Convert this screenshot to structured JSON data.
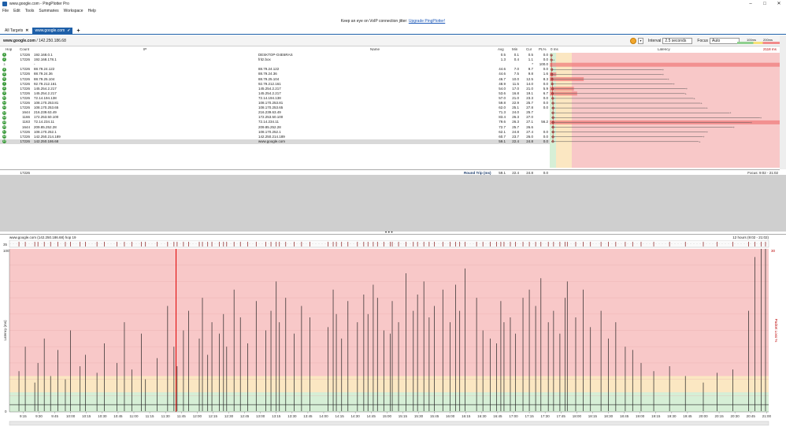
{
  "window": {
    "title": "www.google.com - PingPlotter Pro",
    "min": "–",
    "max": "□",
    "close": "✕"
  },
  "menu": [
    "File",
    "Edit",
    "Tools",
    "Summaries",
    "Workspace",
    "Help"
  ],
  "banner": {
    "text": "Keep an eye on VoIP connection jitter: ",
    "link": "Upgrade PingPlotter!"
  },
  "tabs": [
    {
      "label": "All Targets",
      "active": false
    },
    {
      "label": "www.google.com",
      "active": true
    }
  ],
  "tab_add": "+",
  "target": {
    "host": "www.google.com",
    "sep": " / ",
    "ip": "142.250.186.68"
  },
  "controls": {
    "interval_label": "Interval",
    "interval_value": "2.5 seconds",
    "focus_label": "Focus",
    "focus_value": "Auto",
    "scale_low": "100ms",
    "scale_high": "200ms"
  },
  "columns": {
    "hop": "Hop",
    "count": "Count",
    "ip": "IP",
    "name": "Name",
    "avg": "Avg",
    "min": "Min",
    "cur": "Cur",
    "pl": "PL%",
    "zero": "0 ms",
    "latency": "Latency",
    "max": "2118 ms"
  },
  "hops": [
    {
      "hop": "1",
      "count": "17226",
      "ip": "192.168.0.1",
      "name": "DESKTOP-O4E6RAS",
      "avg": "0.5",
      "min": "0.1",
      "cur": "0.5",
      "pl": "0.0"
    },
    {
      "hop": "2",
      "count": "17226",
      "ip": "192.168.178.1",
      "name": "fritz.box",
      "avg": "1.3",
      "min": "0.4",
      "cur": "1.1",
      "pl": "0.0"
    },
    {
      "hop": "3",
      "count": "",
      "ip": "-",
      "name": "",
      "avg": "",
      "min": "",
      "cur": "*",
      "pl": "100.0"
    },
    {
      "hop": "4",
      "count": "17226",
      "ip": "88.79.24.122",
      "name": "88.79.24.122",
      "avg": "44.6",
      "min": "7.0",
      "cur": "9.7",
      "pl": "0.0"
    },
    {
      "hop": "5",
      "count": "17226",
      "ip": "88.79.24.36",
      "name": "88.79.24.36",
      "avg": "44.6",
      "min": "7.5",
      "cur": "9.8",
      "pl": "1.6"
    },
    {
      "hop": "6",
      "count": "17226",
      "ip": "88.79.25.104",
      "name": "88.79.25.104",
      "avg": "46.7",
      "min": "10.0",
      "cur": "12.5",
      "pl": "8.3"
    },
    {
      "hop": "7",
      "count": "17226",
      "ip": "92.79.212.161",
      "name": "92.79.212.161",
      "avg": "48.9",
      "min": "11.5",
      "cur": "14.0",
      "pl": "0.0"
    },
    {
      "hop": "8",
      "count": "17226",
      "ip": "145.254.2.217",
      "name": "145.254.2.217",
      "avg": "54.0",
      "min": "17.0",
      "cur": "21.0",
      "pl": "5.9"
    },
    {
      "hop": "9",
      "count": "17226",
      "ip": "145.254.2.217",
      "name": "145.254.2.217",
      "avg": "53.6",
      "min": "16.8",
      "cur": "19.1",
      "pl": "6.7"
    },
    {
      "hop": "10",
      "count": "17226",
      "ip": "72.14.194.138",
      "name": "72.14.194.138",
      "avg": "57.0",
      "min": "21.0",
      "cur": "23.3",
      "pl": "0.0"
    },
    {
      "hop": "11",
      "count": "17226",
      "ip": "108.170.253.81",
      "name": "108.170.253.81",
      "avg": "59.8",
      "min": "22.9",
      "cur": "25.7",
      "pl": "0.0"
    },
    {
      "hop": "12",
      "count": "17226",
      "ip": "108.170.253.65",
      "name": "108.170.253.65",
      "avg": "62.0",
      "min": "25.1",
      "cur": "27.8",
      "pl": "0.0"
    },
    {
      "hop": "13",
      "count": "1644",
      "ip": "216.239.63.49",
      "name": "216.239.63.49",
      "avg": "71.3",
      "min": "24.0",
      "cur": "25.7",
      "pl": ""
    },
    {
      "hop": "14",
      "count": "1166",
      "ip": "172.253.50.100",
      "name": "172.253.50.100",
      "avg": "83.4",
      "min": "26.3",
      "cur": "27.0",
      "pl": ""
    },
    {
      "hop": "15",
      "count": "1163",
      "ip": "72.14.234.11",
      "name": "72.14.234.11",
      "avg": "79.6",
      "min": "26.3",
      "cur": "27.1",
      "pl": "56.2"
    },
    {
      "hop": "16",
      "count": "1644",
      "ip": "209.85.252.28",
      "name": "209.85.252.28",
      "avg": "72.7",
      "min": "25.7",
      "cur": "26.6",
      "pl": ""
    },
    {
      "hop": "17",
      "count": "17226",
      "ip": "108.170.252.1",
      "name": "108.170.252.1",
      "avg": "62.1",
      "min": "24.8",
      "cur": "27.4",
      "pl": "0.0"
    },
    {
      "hop": "18",
      "count": "17226",
      "ip": "142.250.214.189",
      "name": "142.250.214.189",
      "avg": "60.7",
      "min": "23.7",
      "cur": "26.0",
      "pl": "0.0"
    },
    {
      "hop": "19",
      "count": "17226",
      "ip": "142.250.186.68",
      "name": "www.google.com",
      "avg": "59.1",
      "min": "22.4",
      "cur": "24.8",
      "pl": "0.0"
    }
  ],
  "roundtrip": {
    "count": "17226",
    "label": "Round Trip (ms)",
    "avg": "59.1",
    "min": "22.4",
    "cur": "24.8",
    "pl": "0.0",
    "focus": "Focus: 9:02 - 21:02"
  },
  "grip": "• • •",
  "chart": {
    "title": "www.google.com (142.250.186.68) hop 19",
    "range": "12 hours (9:02 - 21:02)",
    "ylabel": "Latency (ms)",
    "y2label": "Packet Loss %",
    "ytop": "100",
    "y2top": "30",
    "yzero": "0",
    "ystrip": "35"
  },
  "chart_data": {
    "type": "line",
    "title": "www.google.com (142.250.186.68) hop 19",
    "xlabel": "",
    "ylabel": "Latency (ms)",
    "ylim": [
      0,
      100
    ],
    "x_ticks": [
      "9:15",
      "9:30",
      "9:45",
      "10:00",
      "10:15",
      "10:30",
      "10:45",
      "11:00",
      "11:15",
      "11:30",
      "11:45",
      "12:00",
      "12:15",
      "12:30",
      "12:45",
      "13:00",
      "13:15",
      "13:30",
      "13:45",
      "14:00",
      "14:15",
      "14:30",
      "14:45",
      "15:00",
      "15:15",
      "15:30",
      "15:45",
      "16:00",
      "16:15",
      "16:30",
      "16:45",
      "17:00",
      "17:15",
      "17:30",
      "17:45",
      "18:00",
      "18:15",
      "18:30",
      "18:45",
      "19:00",
      "19:15",
      "19:30",
      "19:45",
      "20:00",
      "20:15",
      "20:30",
      "20:45",
      "21:00"
    ],
    "spike_times": [
      "9:11",
      "9:17",
      "9:26",
      "9:29",
      "9:35",
      "9:41",
      "9:48",
      "9:55",
      "10:00",
      "10:09",
      "10:14",
      "10:25",
      "10:32",
      "10:44",
      "10:51",
      "10:58",
      "11:07",
      "11:11",
      "11:22",
      "11:32",
      "11:38",
      "11:41",
      "11:47",
      "11:52",
      "12:02",
      "12:05",
      "12:10",
      "12:14",
      "12:21",
      "12:25",
      "12:28",
      "12:35",
      "12:41",
      "12:48",
      "12:56",
      "13:05",
      "13:10",
      "13:15",
      "13:18",
      "13:24",
      "13:32",
      "13:39",
      "13:47",
      "14:04",
      "14:09",
      "14:12",
      "14:17",
      "14:23",
      "14:32",
      "14:38",
      "14:42",
      "14:47",
      "14:51",
      "14:57",
      "15:03",
      "15:05",
      "15:11",
      "15:18",
      "15:25",
      "15:29",
      "15:35",
      "15:40",
      "15:45",
      "15:53",
      "16:00",
      "16:05",
      "16:09",
      "16:14",
      "16:25",
      "16:31",
      "16:38",
      "16:44",
      "16:48",
      "16:51",
      "16:57",
      "17:02",
      "17:09",
      "17:15",
      "17:21",
      "17:26",
      "17:33",
      "17:38",
      "17:44",
      "17:49",
      "17:51",
      "17:59",
      "18:06",
      "18:13",
      "18:23",
      "18:30",
      "18:37",
      "18:46",
      "18:53",
      "19:01",
      "19:13",
      "19:28",
      "19:43",
      "20:00",
      "20:13",
      "20:28",
      "20:43",
      "20:49",
      "20:55",
      "20:59"
    ],
    "spike_values": [
      25,
      40,
      18,
      30,
      45,
      22,
      38,
      20,
      50,
      28,
      35,
      24,
      42,
      30,
      55,
      26,
      48,
      20,
      33,
      65,
      40,
      28,
      50,
      62,
      45,
      70,
      35,
      55,
      48,
      60,
      40,
      75,
      58,
      42,
      68,
      50,
      62,
      80,
      55,
      70,
      48,
      65,
      58,
      52,
      75,
      60,
      45,
      68,
      55,
      72,
      60,
      78,
      70,
      50,
      48,
      68,
      55,
      85,
      62,
      72,
      80,
      58,
      65,
      75,
      55,
      78,
      62,
      88,
      70,
      50,
      45,
      42,
      68,
      55,
      58,
      48,
      70,
      75,
      65,
      82,
      55,
      62,
      48,
      70,
      80,
      58,
      75,
      52,
      62,
      45,
      55,
      40,
      38,
      30,
      25,
      28,
      22,
      18,
      24,
      26,
      62,
      95,
      100,
      100
    ],
    "baseline_ms": 22,
    "loss_time": "11:40"
  },
  "colors": {
    "red_zone": "#f8c8c8",
    "yellow_zone": "#fbe7c2",
    "green_zone": "#d6efd6",
    "accent": "#1e5fa8",
    "line": "#222222",
    "loss": "#e00000",
    "hop_ok": "#3a9a3a"
  }
}
